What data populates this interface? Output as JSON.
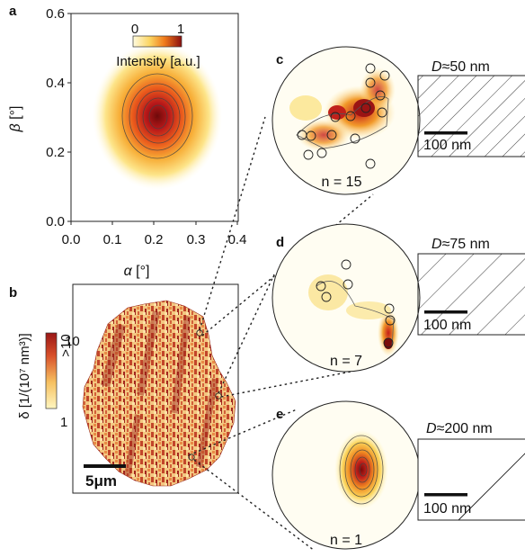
{
  "panel_a": {
    "label": "a",
    "xlabel_sym": "α",
    "xlabel_unit": "[°]",
    "ylabel_sym": "β",
    "ylabel_unit": "[°]",
    "x_ticks": [
      "0.0",
      "0.1",
      "0.2",
      "0.3",
      "0.4"
    ],
    "y_ticks": [
      "0.0",
      "0.2",
      "0.4",
      "0.6"
    ],
    "colorbar_min": "0",
    "colorbar_max": "1",
    "colorbar_label": "Intensity [a.u.]",
    "colors": {
      "low": "#fff8c8",
      "mid": "#f07a1a",
      "high": "#8a0f0f"
    }
  },
  "panel_b": {
    "label": "b",
    "colorbar_label": "δ [1/(10⁷ nm³)]",
    "colorbar_top": ">10",
    "colorbar_mid": "10",
    "colorbar_bottom": "1",
    "scalebar": "5μm"
  },
  "details": [
    {
      "label": "c",
      "diameter": "D≈50 nm",
      "count": "n = 15",
      "scalebar": "100 nm"
    },
    {
      "label": "d",
      "diameter": "D≈75 nm",
      "count": "n = 7",
      "scalebar": "100 nm"
    },
    {
      "label": "e",
      "diameter": "D≈200 nm",
      "count": "n = 1",
      "scalebar": "100 nm"
    }
  ]
}
